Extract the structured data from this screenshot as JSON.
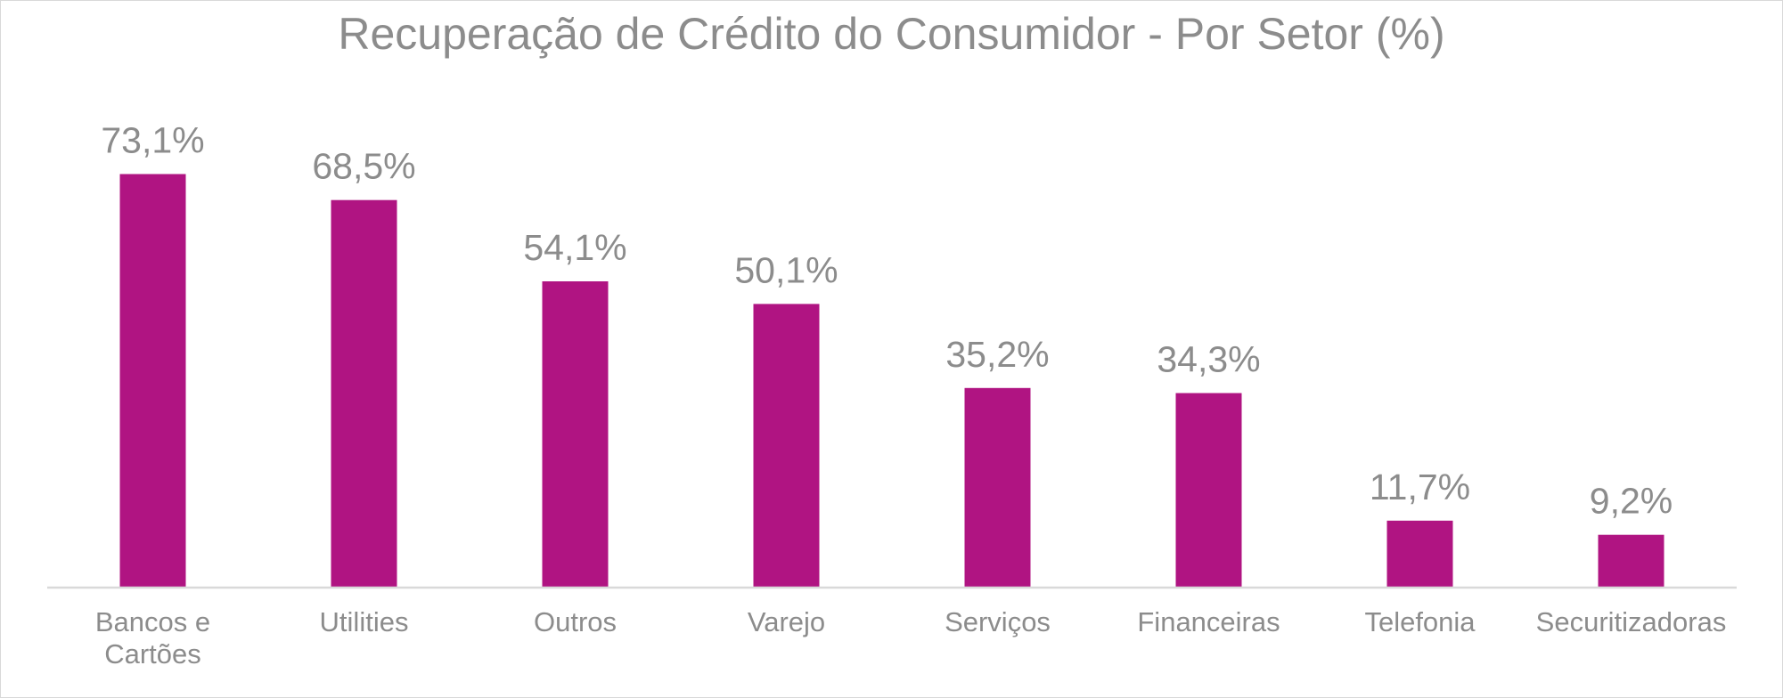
{
  "chart_data": {
    "type": "bar",
    "title": "Recuperação de Crédito do Consumidor - Por Setor (%)",
    "xlabel": "",
    "ylabel": "",
    "categories": [
      [
        "Bancos e",
        "Cartões"
      ],
      [
        "Utilities"
      ],
      [
        "Outros"
      ],
      [
        "Varejo"
      ],
      [
        "Serviços"
      ],
      [
        "Financeiras"
      ],
      [
        "Telefonia"
      ],
      [
        "Securitizadoras"
      ]
    ],
    "values": [
      73.1,
      68.5,
      54.1,
      50.1,
      35.2,
      34.3,
      11.7,
      9.2
    ],
    "data_labels": [
      "73,1%",
      "68,5%",
      "54,1%",
      "50,1%",
      "35,2%",
      "34,3%",
      "11,7%",
      "9,2%"
    ],
    "ylim": [
      0,
      80
    ],
    "grid": false,
    "legend": "none",
    "colors": {
      "bar": "#b01482",
      "text": "#8c8c8c",
      "axis": "#d9d9d9"
    }
  }
}
